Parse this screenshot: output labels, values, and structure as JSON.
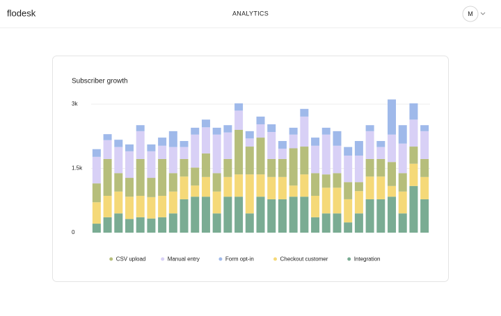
{
  "header": {
    "brand": "flodesk",
    "title": "ANALYTICS",
    "avatar": "M"
  },
  "chart_data": {
    "type": "stacked_bar",
    "title": "Subscriber growth",
    "categories": [
      null,
      null,
      null,
      null,
      null,
      null,
      null,
      null,
      null,
      null,
      null,
      null,
      null,
      null,
      null,
      null,
      null,
      null,
      null,
      null,
      null,
      null,
      null,
      null,
      null,
      null,
      null,
      null,
      null,
      null,
      null
    ],
    "series": [
      {
        "name": "CSV upload",
        "color": "#b6be7b",
        "values": [
          440,
          860,
          430,
          440,
          860,
          450,
          860,
          430,
          410,
          420,
          550,
          430,
          420,
          1040,
          650,
          860,
          420,
          420,
          870,
          650,
          530,
          310,
          340,
          400,
          210,
          410,
          410,
          560,
          430,
          400,
          420
        ]
      },
      {
        "name": "Manual entry",
        "color": "#d8d0f6",
        "values": [
          620,
          440,
          610,
          620,
          650,
          620,
          310,
          610,
          280,
          770,
          610,
          900,
          620,
          450,
          190,
          310,
          630,
          240,
          320,
          700,
          640,
          930,
          640,
          620,
          620,
          650,
          280,
          640,
          690,
          630,
          650
        ]
      },
      {
        "name": "Form opt-in",
        "color": "#9fb9ea",
        "values": [
          180,
          140,
          170,
          160,
          140,
          160,
          190,
          370,
          140,
          160,
          180,
          160,
          170,
          170,
          170,
          180,
          180,
          180,
          160,
          180,
          190,
          160,
          340,
          200,
          340,
          140,
          140,
          820,
          430,
          380,
          140
        ]
      },
      {
        "name": "Checkout customer",
        "color": "#f5d978",
        "values": [
          500,
          500,
          510,
          520,
          500,
          500,
          500,
          510,
          530,
          260,
          460,
          510,
          460,
          520,
          910,
          520,
          520,
          520,
          260,
          520,
          500,
          600,
          600,
          540,
          520,
          530,
          530,
          250,
          510,
          520,
          520
        ]
      },
      {
        "name": "Integration",
        "color": "#7aac93",
        "values": [
          210,
          360,
          450,
          320,
          360,
          330,
          360,
          450,
          780,
          840,
          840,
          450,
          840,
          840,
          450,
          840,
          780,
          780,
          840,
          840,
          360,
          450,
          450,
          240,
          450,
          780,
          780,
          840,
          450,
          1090,
          780
        ]
      }
    ],
    "ylim": [
      0,
      3000
    ],
    "yticks": [
      0,
      {
        "value": 1500,
        "label": "1.5k"
      },
      {
        "value": 3000,
        "label": "3k"
      }
    ],
    "grid": true,
    "legend": "bottom"
  }
}
